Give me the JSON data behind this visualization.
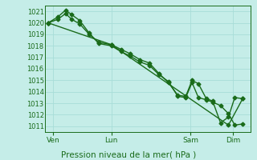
{
  "xlabel_label": "Pression niveau de la mer( hPa )",
  "bg_color": "#c5ede8",
  "grid_color": "#a8ddd8",
  "line_color": "#1a6b1a",
  "ylim": [
    1010.5,
    1021.5
  ],
  "yticks": [
    1011,
    1012,
    1013,
    1014,
    1015,
    1016,
    1017,
    1018,
    1019,
    1020,
    1021
  ],
  "xtick_positions": [
    0.15,
    2.0,
    4.5,
    5.85
  ],
  "xtick_labels": [
    "Ven",
    "Lun",
    "Sam",
    "Dim"
  ],
  "xlim": [
    -0.1,
    6.4
  ],
  "series1_x": [
    0.0,
    0.3,
    0.55,
    0.75,
    1.0,
    1.3,
    1.6,
    2.0,
    2.3,
    2.6,
    2.9,
    3.2,
    3.5,
    3.8,
    4.1,
    4.35,
    4.55,
    4.75,
    5.0,
    5.2,
    5.45,
    5.7,
    5.9,
    6.15
  ],
  "series1_y": [
    1020.0,
    1020.5,
    1021.1,
    1020.7,
    1020.2,
    1019.1,
    1018.2,
    1018.0,
    1017.5,
    1017.1,
    1016.6,
    1016.3,
    1015.5,
    1014.9,
    1013.6,
    1013.5,
    1014.8,
    1013.5,
    1013.3,
    1013.1,
    1012.8,
    1012.1,
    1011.1,
    1011.2
  ],
  "series2_x": [
    0.0,
    0.3,
    0.55,
    0.75,
    1.0,
    1.3,
    1.6,
    2.0,
    2.3,
    2.6,
    2.9,
    3.2,
    3.5,
    3.8,
    4.1,
    4.35,
    4.55,
    4.75,
    5.0,
    5.2,
    5.45,
    5.7,
    5.9,
    6.15
  ],
  "series2_y": [
    1020.0,
    1020.3,
    1020.8,
    1020.3,
    1019.9,
    1019.0,
    1018.3,
    1018.1,
    1017.7,
    1017.3,
    1016.8,
    1016.5,
    1015.6,
    1014.8,
    1013.7,
    1013.6,
    1015.0,
    1014.7,
    1013.4,
    1013.2,
    1011.3,
    1011.8,
    1013.5,
    1013.4
  ],
  "series3_x": [
    0.0,
    2.0,
    5.7,
    6.15
  ],
  "series3_y": [
    1020.0,
    1018.1,
    1011.1,
    1013.4
  ],
  "marker": "D",
  "markersize": 2.5,
  "linewidth": 1.0
}
